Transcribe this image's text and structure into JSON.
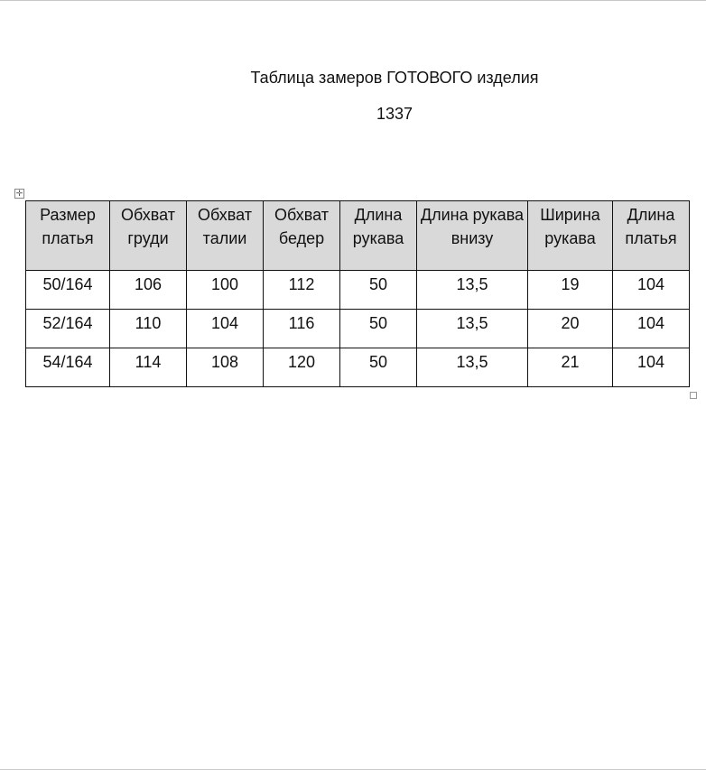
{
  "title": "Таблица замеров ГОТОВОГО изделия",
  "code": "1337",
  "table": {
    "headers": [
      "Размер платья",
      "Обхват груди",
      "Обхват талии",
      "Обхват бедер",
      "Длина рукава",
      "Длина рукава внизу",
      "Ширина рукава",
      "Длина платья"
    ],
    "rows": [
      [
        "50/164",
        "106",
        "100",
        "112",
        "50",
        "13,5",
        "19",
        "104"
      ],
      [
        "52/164",
        "110",
        "104",
        "116",
        "50",
        "13,5",
        "20",
        "104"
      ],
      [
        "54/164",
        "114",
        "108",
        "120",
        "50",
        "13,5",
        "21",
        "104"
      ]
    ],
    "header_bg": "#d9d9d9"
  }
}
